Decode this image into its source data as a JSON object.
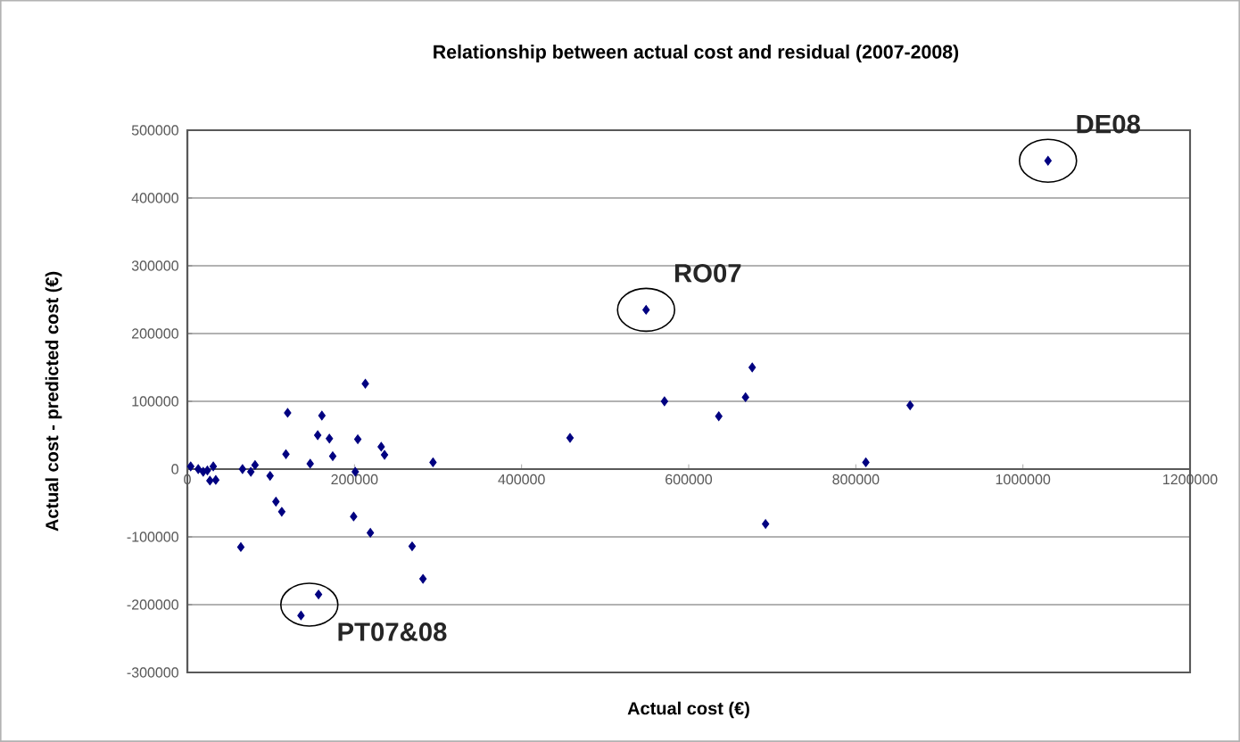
{
  "chart_data": {
    "type": "scatter",
    "title": "Relationship between actual cost and residual (2007-2008)",
    "xlabel": "Actual cost (€)",
    "ylabel": "Actual cost - predicted cost (€)",
    "x": [
      4000,
      13000,
      19000,
      24000,
      27000,
      31000,
      34000,
      64000,
      66000,
      76000,
      81000,
      99000,
      106000,
      113000,
      118000,
      120000,
      136000,
      147000,
      156000,
      157000,
      161000,
      170000,
      174000,
      199000,
      201000,
      204000,
      213000,
      219000,
      232000,
      236000,
      269000,
      282000,
      294000,
      458000,
      549000,
      571000,
      636000,
      668000,
      676000,
      692000,
      812000,
      865000,
      1030000
    ],
    "values": [
      4000,
      0,
      -4000,
      -2000,
      -17000,
      4000,
      -16000,
      -115000,
      0,
      -4000,
      6000,
      -10000,
      -48000,
      -63000,
      22000,
      83000,
      -216000,
      8000,
      50000,
      -185000,
      79000,
      45000,
      19000,
      -70000,
      -4000,
      44000,
      126000,
      -94000,
      33000,
      21000,
      -114000,
      -162000,
      10000,
      46000,
      235000,
      100000,
      78000,
      106000,
      150000,
      -81000,
      10000,
      94000,
      455000
    ],
    "color": "#000080",
    "marker": "diamond",
    "grid": "y",
    "xlim": [
      0,
      1200000
    ],
    "xticks": [
      0,
      200000,
      400000,
      600000,
      800000,
      1000000,
      1200000
    ],
    "ylim": [
      -300000,
      500000
    ],
    "yticks": [
      -300000,
      -200000,
      -100000,
      0,
      100000,
      200000,
      300000,
      400000,
      500000
    ],
    "annotations": [
      {
        "text": "DE08",
        "x": 1030000,
        "y": 455000
      },
      {
        "text": "RO07",
        "x": 549000,
        "y": 235000
      },
      {
        "text": "PT07&08",
        "x": 146000,
        "y": -200000
      }
    ]
  }
}
